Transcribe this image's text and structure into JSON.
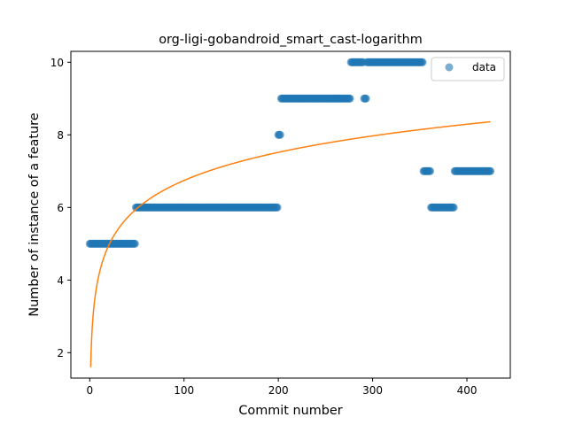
{
  "chart_data": {
    "type": "scatter",
    "title": "org-ligi-gobandroid_smart_cast-logarithm",
    "xlabel": "Commit number",
    "ylabel": "Number of instance of a feature",
    "xlim": [
      -20,
      446
    ],
    "ylim": [
      1.3,
      10.3
    ],
    "xticks": [
      0,
      100,
      200,
      300,
      400
    ],
    "yticks": [
      2,
      4,
      6,
      8,
      10
    ],
    "grid": false,
    "legend_position": "upper-right",
    "series": [
      {
        "name": "data",
        "kind": "scatter",
        "color": "#1f77b4",
        "segments": [
          {
            "x_start": 0,
            "x_end": 48,
            "y": 5
          },
          {
            "x_start": 49,
            "x_end": 199,
            "y": 6
          },
          {
            "x_start": 200,
            "x_end": 202,
            "y": 8
          },
          {
            "x_start": 203,
            "x_end": 276,
            "y": 9
          },
          {
            "x_start": 277,
            "x_end": 290,
            "y": 10
          },
          {
            "x_start": 291,
            "x_end": 293,
            "y": 9
          },
          {
            "x_start": 294,
            "x_end": 353,
            "y": 10
          },
          {
            "x_start": 354,
            "x_end": 361,
            "y": 7
          },
          {
            "x_start": 362,
            "x_end": 386,
            "y": 6
          },
          {
            "x_start": 387,
            "x_end": 425,
            "y": 7
          }
        ]
      },
      {
        "kind": "line",
        "color": "#ff7f0e",
        "model": "a + b*ln(x)",
        "a": 1.6,
        "b": 1.117,
        "x_start": 1,
        "x_end": 425
      }
    ]
  }
}
